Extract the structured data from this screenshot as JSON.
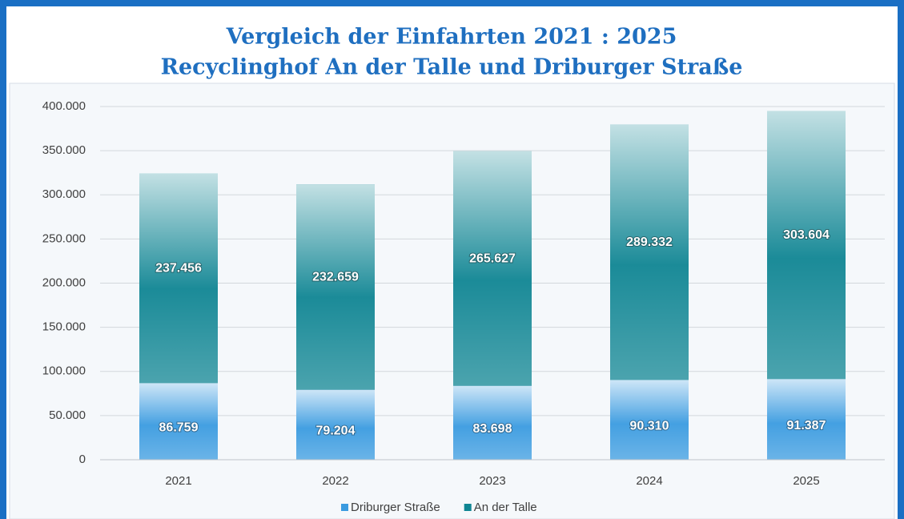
{
  "chart_data": {
    "type": "stacked_bar",
    "title": [
      "Vergleich der Einfahrten 2021 : 2025",
      "Recyclinghof An der Talle und Driburger Straße"
    ],
    "categories": [
      "2021",
      "2022",
      "2023",
      "2024",
      "2025"
    ],
    "series": [
      {
        "name": "Driburger Straße",
        "color": "#3a9be0",
        "values": [
          86759,
          79204,
          83698,
          90310,
          91387
        ],
        "value_labels": [
          "86.759",
          "79.204",
          "83.698",
          "90.310",
          "91.387"
        ]
      },
      {
        "name": "An der Talle",
        "color": "#0f8593",
        "values": [
          237456,
          232659,
          265627,
          289332,
          303604
        ],
        "value_labels": [
          "237.456",
          "232.659",
          "265.627",
          "289.332",
          "303.604"
        ]
      }
    ],
    "ylim": [
      0,
      400000
    ],
    "yticks": [
      0,
      {
        "value": 50000,
        "label": "50.000"
      },
      {
        "value": 100000,
        "label": "100.000"
      },
      {
        "value": 150000,
        "label": "150.000"
      },
      {
        "value": 200000,
        "label": "200.000"
      },
      {
        "value": 250000,
        "label": "250.000"
      },
      {
        "value": 300000,
        "label": "300.000"
      },
      {
        "value": 350000,
        "label": "350.000"
      },
      {
        "value": 400000,
        "label": "400.000"
      }
    ],
    "grid": true,
    "legend": "bottom"
  }
}
